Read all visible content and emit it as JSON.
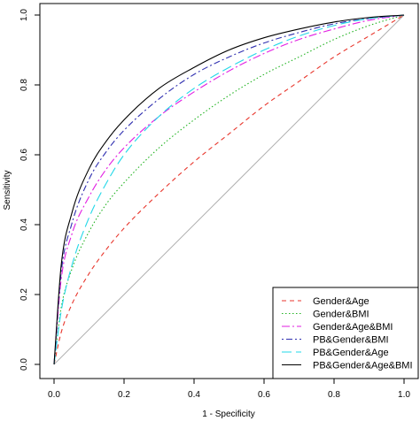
{
  "chart_data": {
    "type": "line",
    "xlabel": "1 - Specificity",
    "ylabel": "Sensitivity",
    "xlim": [
      0,
      1
    ],
    "ylim": [
      0,
      1
    ],
    "xticks": [
      "0.0",
      "0.2",
      "0.4",
      "0.6",
      "0.8",
      "1.0"
    ],
    "yticks": [
      "0.0",
      "0.2",
      "0.4",
      "0.6",
      "0.8",
      "1.0"
    ],
    "grid": false,
    "legend_position": "bottom-right",
    "reference_line": {
      "x": [
        0,
        1
      ],
      "y": [
        0,
        1
      ],
      "color": "#b0b0b0"
    },
    "series": [
      {
        "name": "Gender&Age",
        "color": "#e8362c",
        "dash": "dashed",
        "x": [
          0,
          0.02,
          0.05,
          0.1,
          0.15,
          0.2,
          0.3,
          0.4,
          0.5,
          0.6,
          0.7,
          0.8,
          0.9,
          1.0
        ],
        "y": [
          0,
          0.09,
          0.17,
          0.26,
          0.33,
          0.39,
          0.49,
          0.58,
          0.66,
          0.74,
          0.81,
          0.88,
          0.94,
          1.0
        ]
      },
      {
        "name": "Gender&BMI",
        "color": "#22b322",
        "dash": "dotted",
        "x": [
          0,
          0.02,
          0.05,
          0.1,
          0.15,
          0.2,
          0.3,
          0.4,
          0.5,
          0.6,
          0.7,
          0.8,
          0.9,
          1.0
        ],
        "y": [
          0,
          0.16,
          0.27,
          0.38,
          0.46,
          0.52,
          0.62,
          0.7,
          0.77,
          0.83,
          0.88,
          0.93,
          0.97,
          1.0
        ]
      },
      {
        "name": "Gender&Age&BMI",
        "color": "#e21ee2",
        "dash": "dashdot",
        "x": [
          0,
          0.02,
          0.05,
          0.1,
          0.15,
          0.2,
          0.3,
          0.4,
          0.5,
          0.6,
          0.7,
          0.8,
          0.9,
          1.0
        ],
        "y": [
          0,
          0.24,
          0.37,
          0.48,
          0.56,
          0.62,
          0.71,
          0.78,
          0.84,
          0.89,
          0.93,
          0.96,
          0.985,
          1.0
        ]
      },
      {
        "name": "PB&Gender&BMI",
        "color": "#3030b0",
        "dash": "dotdash",
        "x": [
          0,
          0.02,
          0.05,
          0.1,
          0.15,
          0.2,
          0.3,
          0.4,
          0.5,
          0.6,
          0.7,
          0.8,
          0.9,
          1.0
        ],
        "y": [
          0,
          0.26,
          0.4,
          0.53,
          0.61,
          0.67,
          0.76,
          0.83,
          0.88,
          0.92,
          0.95,
          0.975,
          0.99,
          1.0
        ]
      },
      {
        "name": "PB&Gender&Age",
        "color": "#22d8e8",
        "dash": "longdash",
        "x": [
          0,
          0.02,
          0.05,
          0.1,
          0.15,
          0.2,
          0.3,
          0.4,
          0.5,
          0.6,
          0.7,
          0.8,
          0.9,
          1.0
        ],
        "y": [
          0,
          0.15,
          0.28,
          0.42,
          0.52,
          0.6,
          0.71,
          0.79,
          0.85,
          0.9,
          0.94,
          0.97,
          0.99,
          1.0
        ]
      },
      {
        "name": "PB&Gender&Age&BMI",
        "color": "#000000",
        "dash": "solid",
        "x": [
          0,
          0.02,
          0.05,
          0.1,
          0.15,
          0.2,
          0.3,
          0.4,
          0.5,
          0.6,
          0.7,
          0.8,
          0.9,
          1.0
        ],
        "y": [
          0,
          0.28,
          0.43,
          0.56,
          0.64,
          0.7,
          0.79,
          0.85,
          0.9,
          0.935,
          0.96,
          0.98,
          0.993,
          1.0
        ]
      }
    ]
  }
}
